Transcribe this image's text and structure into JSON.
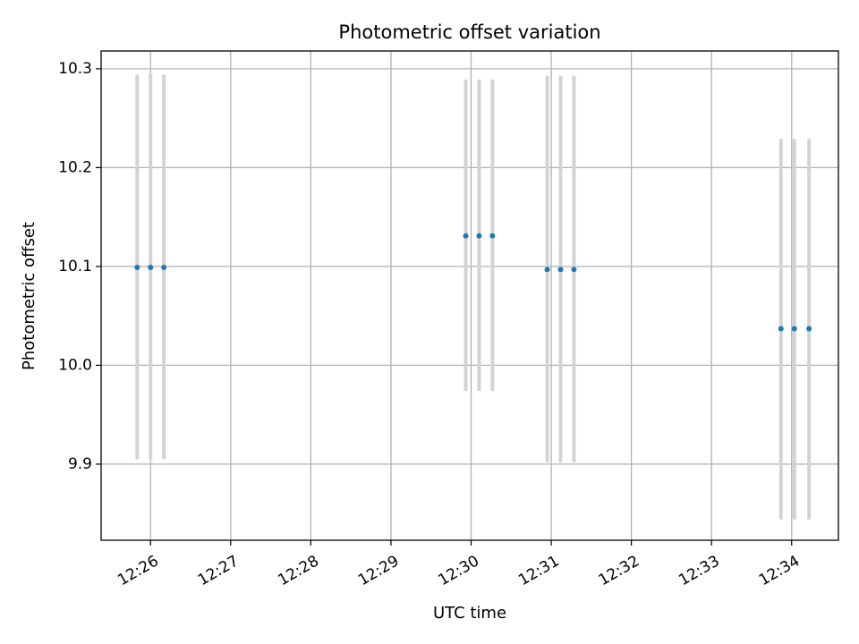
{
  "chart_data": {
    "type": "scatter",
    "title": "Photometric offset variation",
    "xlabel": "UTC time",
    "ylabel": "Photometric offset",
    "x_ticks": [
      "12:26",
      "12:27",
      "12:28",
      "12:29",
      "12:30",
      "12:31",
      "12:32",
      "12:33",
      "12:34"
    ],
    "y_ticks": [
      "9.9",
      "10.0",
      "10.1",
      "10.2",
      "10.3"
    ],
    "xlim": [
      "12:25:23",
      "12:34:35"
    ],
    "ylim": [
      9.823,
      10.318
    ],
    "grid": true,
    "colors": {
      "point": "#1f77b4",
      "errorbar": "#d3d3d3",
      "grid": "#b0b0b0"
    },
    "points": [
      {
        "x": "12:25:50",
        "y": 10.099,
        "yerr_low": 9.905,
        "yerr_high": 10.294
      },
      {
        "x": "12:26:00",
        "y": 10.099,
        "yerr_low": 9.905,
        "yerr_high": 10.294
      },
      {
        "x": "12:26:10",
        "y": 10.099,
        "yerr_low": 9.905,
        "yerr_high": 10.294
      },
      {
        "x": "12:29:56",
        "y": 10.131,
        "yerr_low": 9.974,
        "yerr_high": 10.289
      },
      {
        "x": "12:30:06",
        "y": 10.131,
        "yerr_low": 9.974,
        "yerr_high": 10.289
      },
      {
        "x": "12:30:16",
        "y": 10.131,
        "yerr_low": 9.974,
        "yerr_high": 10.289
      },
      {
        "x": "12:30:57",
        "y": 10.097,
        "yerr_low": 9.902,
        "yerr_high": 10.293
      },
      {
        "x": "12:31:07",
        "y": 10.097,
        "yerr_low": 9.902,
        "yerr_high": 10.293
      },
      {
        "x": "12:31:17",
        "y": 10.097,
        "yerr_low": 9.902,
        "yerr_high": 10.293
      },
      {
        "x": "12:33:52",
        "y": 10.037,
        "yerr_low": 9.844,
        "yerr_high": 10.229
      },
      {
        "x": "12:34:02",
        "y": 10.037,
        "yerr_low": 9.844,
        "yerr_high": 10.229
      },
      {
        "x": "12:34:13",
        "y": 10.037,
        "yerr_low": 9.844,
        "yerr_high": 10.229
      }
    ]
  }
}
